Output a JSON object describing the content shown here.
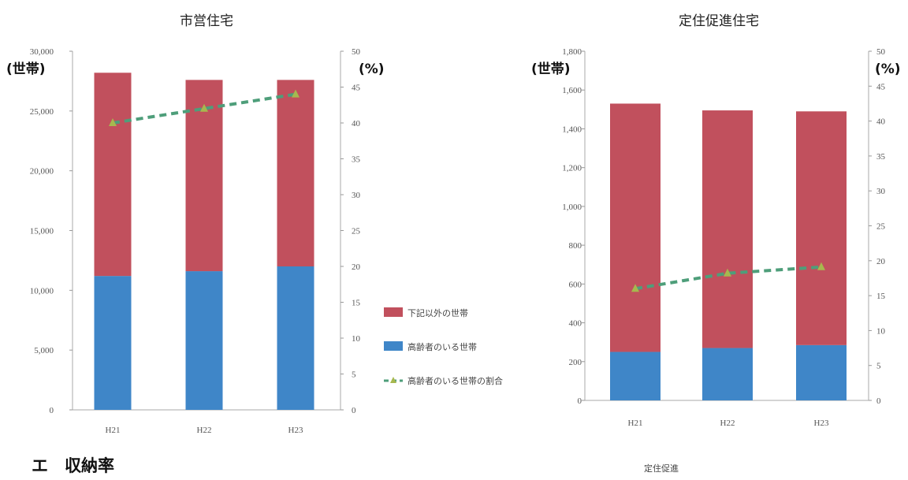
{
  "chart_data": [
    {
      "type": "bar",
      "stacked": true,
      "title": "市営住宅",
      "categories": [
        "H21",
        "H22",
        "H23"
      ],
      "y_unit": "(世帯)",
      "y2_unit": "(%)",
      "ylim": [
        0,
        30000
      ],
      "y2lim": [
        0,
        50
      ],
      "yticks": [
        "0",
        "5,000",
        "10,000",
        "15,000",
        "20,000",
        "25,000",
        "30,000"
      ],
      "y2ticks": [
        "0",
        "5",
        "10",
        "15",
        "20",
        "25",
        "30",
        "35",
        "40",
        "45",
        "50"
      ],
      "series": [
        {
          "name": "高齢者のいる世帯",
          "type": "bar",
          "color": "#3f86c8",
          "values": [
            11200,
            11600,
            12000
          ]
        },
        {
          "name": "下記以外の世帯",
          "type": "bar",
          "color": "#c1505d",
          "values": [
            17000,
            16000,
            15600
          ]
        },
        {
          "name": "高齢者のいる世帯の割合",
          "type": "line",
          "axis": "right",
          "color": "#4e9e7a",
          "values": [
            40,
            42,
            44
          ]
        }
      ],
      "grid": false
    },
    {
      "type": "bar",
      "stacked": true,
      "title": "定住促進住宅",
      "categories": [
        "H21",
        "H22",
        "H23"
      ],
      "y_unit": "(世帯)",
      "y2_unit": "(%)",
      "ylim": [
        0,
        1800
      ],
      "y2lim": [
        0,
        50
      ],
      "yticks": [
        "0",
        "200",
        "400",
        "600",
        "800",
        "1,000",
        "1,200",
        "1,400",
        "1,600",
        "1,800"
      ],
      "y2ticks": [
        "0",
        "5",
        "10",
        "15",
        "20",
        "25",
        "30",
        "35",
        "40",
        "45",
        "50"
      ],
      "series": [
        {
          "name": "高齢者のいる世帯",
          "type": "bar",
          "color": "#3f86c8",
          "values": [
            250,
            270,
            285
          ]
        },
        {
          "name": "下記以外の世帯",
          "type": "bar",
          "color": "#c1505d",
          "values": [
            1280,
            1225,
            1205
          ]
        },
        {
          "name": "高齢者のいる世帯の割合",
          "type": "line",
          "axis": "right",
          "color": "#4e9e7a",
          "values": [
            16,
            18.2,
            19.1
          ]
        }
      ],
      "grid": false
    }
  ],
  "legend": {
    "items": [
      {
        "label": "下記以外の世帯",
        "color": "#c1505d",
        "kind": "bar"
      },
      {
        "label": "高齢者のいる世帯",
        "color": "#3f86c8",
        "kind": "bar"
      },
      {
        "label": "高齢者のいる世帯の割合",
        "color": "#4e9e7a",
        "kind": "line"
      }
    ]
  },
  "footer": {
    "left": "エ　収納率",
    "right": "定住促進"
  }
}
